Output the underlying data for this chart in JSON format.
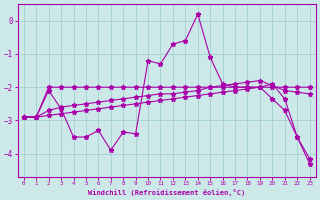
{
  "xlabel": "Windchill (Refroidissement éolien,°C)",
  "bg_color": "#cce8e8",
  "grid_color": "#99cccc",
  "line_color": "#aa00aa",
  "x": [
    0,
    1,
    2,
    3,
    4,
    5,
    6,
    7,
    8,
    9,
    10,
    11,
    12,
    13,
    14,
    15,
    16,
    17,
    18,
    19,
    20,
    21,
    22,
    23
  ],
  "line1": [
    -2.9,
    -2.9,
    -2.1,
    -2.65,
    -3.5,
    -3.5,
    -3.3,
    -3.9,
    -3.35,
    -3.4,
    -1.2,
    -1.3,
    -0.7,
    -0.6,
    0.2,
    -1.1,
    -1.9,
    -2.0,
    -2.0,
    -2.0,
    -1.9,
    -2.35,
    -3.5,
    -4.15
  ],
  "line2": [
    -2.9,
    -2.9,
    -2.0,
    -2.0,
    -2.0,
    -2.0,
    -2.0,
    -2.0,
    -2.0,
    -2.0,
    -2.0,
    -2.0,
    -2.0,
    -2.0,
    -2.0,
    -2.0,
    -2.0,
    -2.0,
    -2.0,
    -2.0,
    -2.0,
    -2.0,
    -2.0,
    -2.0
  ],
  "line3": [
    -2.9,
    -2.9,
    -2.85,
    -2.8,
    -2.75,
    -2.7,
    -2.65,
    -2.6,
    -2.55,
    -2.5,
    -2.45,
    -2.4,
    -2.35,
    -2.3,
    -2.25,
    -2.2,
    -2.15,
    -2.1,
    -2.05,
    -2.0,
    -2.35,
    -2.7,
    -3.5,
    -4.3
  ],
  "line4": [
    -2.9,
    -2.9,
    -2.7,
    -2.6,
    -2.55,
    -2.5,
    -2.45,
    -2.4,
    -2.35,
    -2.3,
    -2.25,
    -2.2,
    -2.2,
    -2.15,
    -2.1,
    -2.0,
    -1.95,
    -1.9,
    -1.85,
    -1.8,
    -1.95,
    -2.1,
    -2.15,
    -2.2
  ],
  "xlim": [
    -0.5,
    23.5
  ],
  "ylim": [
    -4.7,
    0.5
  ],
  "yticks": [
    0,
    -1,
    -2,
    -3,
    -4
  ],
  "xticks": [
    0,
    1,
    2,
    3,
    4,
    5,
    6,
    7,
    8,
    9,
    10,
    11,
    12,
    13,
    14,
    15,
    16,
    17,
    18,
    19,
    20,
    21,
    22,
    23
  ]
}
